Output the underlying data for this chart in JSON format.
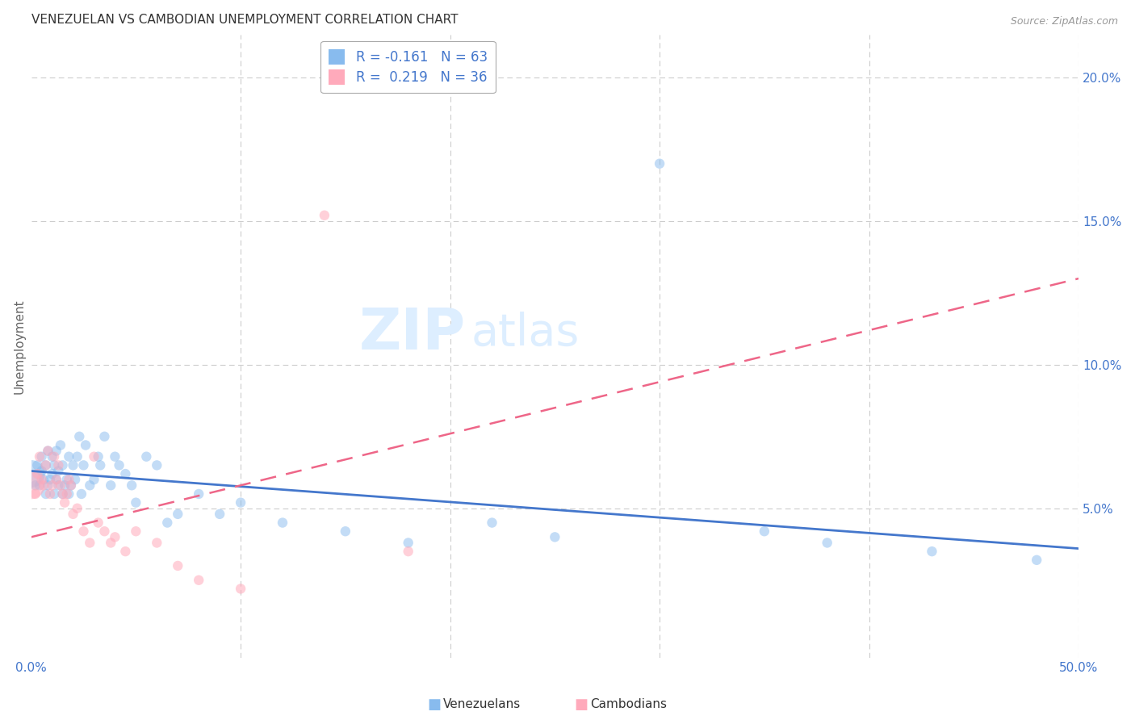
{
  "title": "VENEZUELAN VS CAMBODIAN UNEMPLOYMENT CORRELATION CHART",
  "source": "Source: ZipAtlas.com",
  "ylabel": "Unemployment",
  "xlim": [
    0.0,
    0.5
  ],
  "ylim": [
    -0.002,
    0.215
  ],
  "blue_color": "#88BBEE",
  "pink_color": "#FFAABB",
  "blue_line_color": "#4477CC",
  "pink_line_color": "#EE6688",
  "venezuelan_x": [
    0.0,
    0.002,
    0.003,
    0.004,
    0.005,
    0.005,
    0.006,
    0.007,
    0.007,
    0.008,
    0.008,
    0.009,
    0.01,
    0.01,
    0.011,
    0.011,
    0.012,
    0.012,
    0.013,
    0.013,
    0.014,
    0.015,
    0.015,
    0.016,
    0.017,
    0.018,
    0.018,
    0.019,
    0.02,
    0.021,
    0.022,
    0.023,
    0.024,
    0.025,
    0.026,
    0.028,
    0.03,
    0.032,
    0.033,
    0.035,
    0.038,
    0.04,
    0.042,
    0.045,
    0.048,
    0.05,
    0.055,
    0.06,
    0.065,
    0.07,
    0.08,
    0.09,
    0.1,
    0.12,
    0.15,
    0.18,
    0.22,
    0.25,
    0.3,
    0.35,
    0.38,
    0.43,
    0.48
  ],
  "venezuelan_y": [
    0.062,
    0.058,
    0.065,
    0.058,
    0.063,
    0.068,
    0.06,
    0.055,
    0.065,
    0.058,
    0.07,
    0.06,
    0.062,
    0.068,
    0.055,
    0.065,
    0.06,
    0.07,
    0.058,
    0.063,
    0.072,
    0.055,
    0.065,
    0.058,
    0.06,
    0.068,
    0.055,
    0.058,
    0.065,
    0.06,
    0.068,
    0.075,
    0.055,
    0.065,
    0.072,
    0.058,
    0.06,
    0.068,
    0.065,
    0.075,
    0.058,
    0.068,
    0.065,
    0.062,
    0.058,
    0.052,
    0.068,
    0.065,
    0.045,
    0.048,
    0.055,
    0.048,
    0.052,
    0.045,
    0.042,
    0.038,
    0.045,
    0.04,
    0.17,
    0.042,
    0.038,
    0.035,
    0.032
  ],
  "venezuelan_size": [
    600,
    80,
    80,
    80,
    80,
    80,
    80,
    80,
    80,
    80,
    80,
    80,
    80,
    80,
    80,
    80,
    80,
    80,
    80,
    80,
    80,
    80,
    80,
    80,
    80,
    80,
    80,
    80,
    80,
    80,
    80,
    80,
    80,
    80,
    80,
    80,
    80,
    80,
    80,
    80,
    80,
    80,
    80,
    80,
    80,
    80,
    80,
    80,
    80,
    80,
    80,
    80,
    80,
    80,
    80,
    80,
    80,
    80,
    80,
    80,
    80,
    80,
    80
  ],
  "cambodian_x": [
    0.0,
    0.002,
    0.003,
    0.004,
    0.005,
    0.006,
    0.007,
    0.008,
    0.009,
    0.01,
    0.011,
    0.012,
    0.013,
    0.014,
    0.015,
    0.016,
    0.017,
    0.018,
    0.019,
    0.02,
    0.022,
    0.025,
    0.028,
    0.03,
    0.032,
    0.035,
    0.038,
    0.04,
    0.045,
    0.05,
    0.06,
    0.07,
    0.08,
    0.1,
    0.14,
    0.18
  ],
  "cambodian_y": [
    0.058,
    0.055,
    0.062,
    0.068,
    0.06,
    0.058,
    0.065,
    0.07,
    0.055,
    0.058,
    0.068,
    0.06,
    0.065,
    0.058,
    0.055,
    0.052,
    0.055,
    0.06,
    0.058,
    0.048,
    0.05,
    0.042,
    0.038,
    0.068,
    0.045,
    0.042,
    0.038,
    0.04,
    0.035,
    0.042,
    0.038,
    0.03,
    0.025,
    0.022,
    0.152,
    0.035
  ],
  "cambodian_size": [
    600,
    80,
    80,
    80,
    80,
    80,
    80,
    80,
    80,
    80,
    80,
    80,
    80,
    80,
    80,
    80,
    80,
    80,
    80,
    80,
    80,
    80,
    80,
    80,
    80,
    80,
    80,
    80,
    80,
    80,
    80,
    80,
    80,
    80,
    80,
    80
  ],
  "ven_trend": [
    0.063,
    0.036
  ],
  "cam_trend": [
    0.04,
    0.13
  ],
  "title_fontsize": 11,
  "label_fontsize": 11,
  "tick_fontsize": 11,
  "bg_color": "#ffffff",
  "grid_color": "#cccccc"
}
